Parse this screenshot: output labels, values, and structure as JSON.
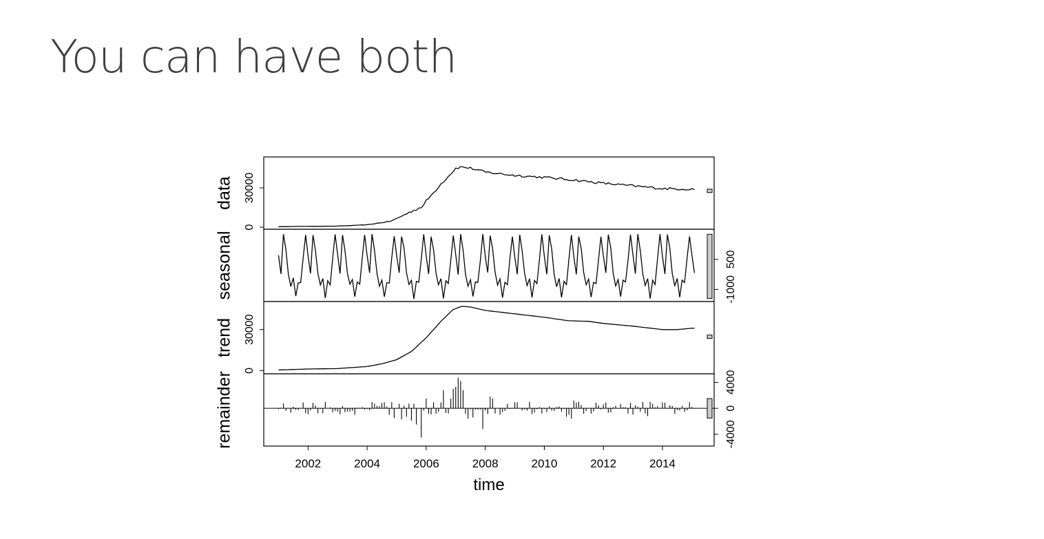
{
  "slide": {
    "title": "You can have both"
  },
  "chart_data": {
    "type": "line",
    "xlabel": "time",
    "xlim": [
      2000.5,
      2015.75
    ],
    "xticks": [
      2002,
      2004,
      2006,
      2008,
      2010,
      2012,
      2014
    ],
    "series_start": 2001.0,
    "frequency": 12,
    "panels": [
      {
        "name": "data",
        "ylabel": "data",
        "ylim": [
          0,
          52000
        ],
        "yticks": [
          0,
          30000
        ],
        "tick_side": "left",
        "style": "line",
        "range_bar": [
          27000,
          29000
        ],
        "anchors": [
          [
            2001.0,
            400
          ],
          [
            2003.0,
            800
          ],
          [
            2004.0,
            1800
          ],
          [
            2004.8,
            4500
          ],
          [
            2005.5,
            12000
          ],
          [
            2005.9,
            16000
          ],
          [
            2006.0,
            20000
          ],
          [
            2006.2,
            25000
          ],
          [
            2006.5,
            33000
          ],
          [
            2006.8,
            40000
          ],
          [
            2007.0,
            45000
          ],
          [
            2007.2,
            46000
          ],
          [
            2007.5,
            45000
          ],
          [
            2008.0,
            42000
          ],
          [
            2009.0,
            39500
          ],
          [
            2010.0,
            38000
          ],
          [
            2011.0,
            36000
          ],
          [
            2012.0,
            33500
          ],
          [
            2013.0,
            31500
          ],
          [
            2014.0,
            29500
          ],
          [
            2015.0,
            29000
          ]
        ],
        "jitter": 900
      },
      {
        "name": "seasonal",
        "ylabel": "seasonal",
        "ylim": [
          -1500,
          1900
        ],
        "yticks": [
          500,
          -1000
        ],
        "tick_side": "right",
        "style": "line",
        "range_bar": [
          -1450,
          1750
        ],
        "pattern": [
          700,
          -200,
          1700,
          1000,
          -200,
          -800,
          -500,
          -1400,
          -600,
          -700,
          500,
          1700
        ]
      },
      {
        "name": "trend",
        "ylabel": "trend",
        "ylim": [
          -800,
          49000
        ],
        "yticks": [
          0,
          30000
        ],
        "tick_side": "left",
        "style": "line",
        "range_bar": [
          24000,
          26000
        ],
        "anchors": [
          [
            2001.0,
            500
          ],
          [
            2002.0,
            1200
          ],
          [
            2003.0,
            1500
          ],
          [
            2004.0,
            3000
          ],
          [
            2004.5,
            5000
          ],
          [
            2005.0,
            8000
          ],
          [
            2005.5,
            14000
          ],
          [
            2006.0,
            24000
          ],
          [
            2006.5,
            36000
          ],
          [
            2006.9,
            44500
          ],
          [
            2007.2,
            47000
          ],
          [
            2007.5,
            46500
          ],
          [
            2008.0,
            44000
          ],
          [
            2009.0,
            41500
          ],
          [
            2010.0,
            39000
          ],
          [
            2010.8,
            36500
          ],
          [
            2011.5,
            36000
          ],
          [
            2012.0,
            34500
          ],
          [
            2013.0,
            32500
          ],
          [
            2014.0,
            30000
          ],
          [
            2014.5,
            30000
          ],
          [
            2015.0,
            31000
          ]
        ]
      },
      {
        "name": "remainder",
        "ylabel": "remainder",
        "ylim": [
          -5500,
          5000
        ],
        "yticks": [
          4000,
          0,
          -4000
        ],
        "tick_side": "right",
        "style": "histogram",
        "range_bar": [
          -1500,
          1500
        ],
        "remainder_events": [
          [
            2004.75,
            -1000
          ],
          [
            2004.92,
            -1500
          ],
          [
            2005.17,
            -1700
          ],
          [
            2005.33,
            -1300
          ],
          [
            2005.5,
            -1900
          ],
          [
            2005.67,
            -2500
          ],
          [
            2005.83,
            -4500
          ],
          [
            2006.0,
            1500
          ],
          [
            2006.5,
            900
          ],
          [
            2006.58,
            2800
          ],
          [
            2006.83,
            1500
          ],
          [
            2006.92,
            3000
          ],
          [
            2007.0,
            3300
          ],
          [
            2007.08,
            4700
          ],
          [
            2007.17,
            4200
          ],
          [
            2007.25,
            2800
          ],
          [
            2007.42,
            -1600
          ],
          [
            2007.58,
            -1400
          ],
          [
            2007.92,
            -3200
          ],
          [
            2008.17,
            1800
          ],
          [
            2008.25,
            1500
          ],
          [
            2008.5,
            -1000
          ],
          [
            2009.5,
            1000
          ],
          [
            2010.75,
            -1300
          ],
          [
            2010.92,
            -1600
          ],
          [
            2011.0,
            1200
          ],
          [
            2011.17,
            1000
          ],
          [
            2013.5,
            -1200
          ],
          [
            2013.58,
            1000
          ]
        ],
        "remainder_noise": 1000
      }
    ]
  }
}
